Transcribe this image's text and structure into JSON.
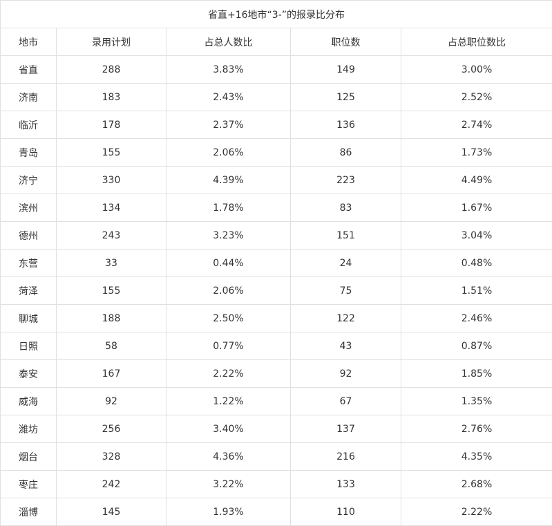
{
  "title": "省直+16地市“3-”的报录比分布",
  "headers": [
    "地市",
    "录用计划",
    "占总人数比",
    "职位数",
    "占总职位数比"
  ],
  "rows": [
    [
      "省直",
      "288",
      "3.83%",
      "149",
      "3.00%"
    ],
    [
      "济南",
      "183",
      "2.43%",
      "125",
      "2.52%"
    ],
    [
      "临沂",
      "178",
      "2.37%",
      "136",
      "2.74%"
    ],
    [
      "青岛",
      "155",
      "2.06%",
      "86",
      "1.73%"
    ],
    [
      "济宁",
      "330",
      "4.39%",
      "223",
      "4.49%"
    ],
    [
      "滨州",
      "134",
      "1.78%",
      "83",
      "1.67%"
    ],
    [
      "德州",
      "243",
      "3.23%",
      "151",
      "3.04%"
    ],
    [
      "东营",
      "33",
      "0.44%",
      "24",
      "0.48%"
    ],
    [
      "菏泽",
      "155",
      "2.06%",
      "75",
      "1.51%"
    ],
    [
      "聊城",
      "188",
      "2.50%",
      "122",
      "2.46%"
    ],
    [
      "日照",
      "58",
      "0.77%",
      "43",
      "0.87%"
    ],
    [
      "泰安",
      "167",
      "2.22%",
      "92",
      "1.85%"
    ],
    [
      "威海",
      "92",
      "1.22%",
      "67",
      "1.35%"
    ],
    [
      "潍坊",
      "256",
      "3.40%",
      "137",
      "2.76%"
    ],
    [
      "烟台",
      "328",
      "4.36%",
      "216",
      "4.35%"
    ],
    [
      "枣庄",
      "242",
      "3.22%",
      "133",
      "2.68%"
    ],
    [
      "淄博",
      "145",
      "1.93%",
      "110",
      "2.22%"
    ]
  ]
}
